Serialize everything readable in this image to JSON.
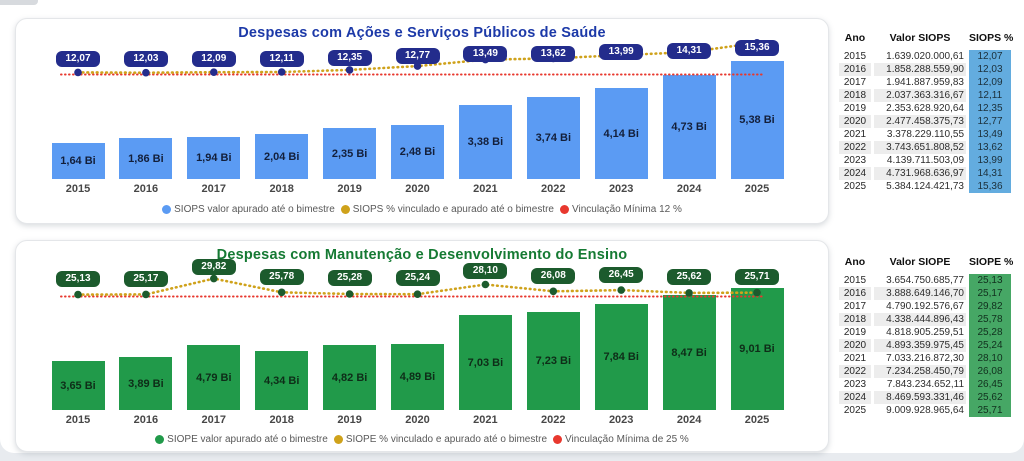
{
  "chart_data": [
    {
      "type": "bar",
      "title": "Despesas com Ações e Serviços Públicos de Saúde",
      "title_color": "#1C39A8",
      "categories": [
        "2015",
        "2016",
        "2017",
        "2018",
        "2019",
        "2020",
        "2021",
        "2022",
        "2023",
        "2024",
        "2025"
      ],
      "bar_series": {
        "name": "SIOPS valor apurado até o bimestre",
        "unit": "Bi",
        "color": "#5B9BF3",
        "values": [
          1.64,
          1.86,
          1.94,
          2.04,
          2.35,
          2.48,
          3.38,
          3.74,
          4.14,
          4.73,
          5.38
        ],
        "labels": [
          "1,64 Bi",
          "1,86 Bi",
          "1,94 Bi",
          "2,04 Bi",
          "2,35 Bi",
          "2,48 Bi",
          "3,38 Bi",
          "3,74 Bi",
          "4,14 Bi",
          "4,73 Bi",
          "5,38 Bi"
        ]
      },
      "pct_series": {
        "name": "SIOPS % vinculado e apurado até o bimestre",
        "color": "#CFA21B",
        "marker_color": "#232C8C",
        "values": [
          12.07,
          12.03,
          12.09,
          12.11,
          12.35,
          12.77,
          13.49,
          13.62,
          13.99,
          14.31,
          15.36
        ],
        "labels": [
          "12,07",
          "12,03",
          "12,09",
          "12,11",
          "12,35",
          "12,77",
          "13,49",
          "13,62",
          "13,99",
          "14,31",
          "15,36"
        ]
      },
      "reference_line": {
        "name": "Vinculação Mínima 12 %",
        "value": 12,
        "color": "#E8382E"
      },
      "ylim": [
        0,
        6
      ],
      "legend_position": "bottom",
      "grid": false
    },
    {
      "type": "bar",
      "title": "Despesas com Manutenção e Desenvolvimento do Ensino",
      "title_color": "#157A33",
      "categories": [
        "2015",
        "2016",
        "2017",
        "2018",
        "2019",
        "2020",
        "2021",
        "2022",
        "2023",
        "2024",
        "2025"
      ],
      "bar_series": {
        "name": "SIOPE valor apurado até o bimestre",
        "unit": "Bi",
        "color": "#219A4A",
        "values": [
          3.65,
          3.89,
          4.79,
          4.34,
          4.82,
          4.89,
          7.03,
          7.23,
          7.84,
          8.47,
          9.01
        ],
        "labels": [
          "3,65 Bi",
          "3,89 Bi",
          "4,79 Bi",
          "4,34 Bi",
          "4,82 Bi",
          "4,89 Bi",
          "7,03 Bi",
          "7,23 Bi",
          "7,84 Bi",
          "8,47 Bi",
          "9,01 Bi"
        ]
      },
      "pct_series": {
        "name": "SIOPE % vinculado e apurado até o bimestre",
        "color": "#CFA21B",
        "marker_color": "#1C5B2D",
        "values": [
          25.13,
          25.17,
          29.82,
          25.78,
          25.28,
          25.24,
          28.1,
          26.08,
          26.45,
          25.62,
          25.71
        ],
        "labels": [
          "25,13",
          "25,17",
          "29,82",
          "25,78",
          "25,28",
          "25,24",
          "28,10",
          "26,08",
          "26,45",
          "25,62",
          "25,71"
        ]
      },
      "reference_line": {
        "name": "Vinculação Mínima de 25 %",
        "value": 25,
        "color": "#E8382E"
      },
      "ylim": [
        0,
        10
      ],
      "legend_position": "bottom",
      "grid": false
    }
  ],
  "tables": [
    {
      "headers": [
        "Ano",
        "Valor SIOPS",
        "SIOPS %"
      ],
      "pct_bg": "#63ACDF",
      "pct_text": "#1b2f3a",
      "stripe_color": "#EDEDED",
      "rows": [
        [
          "2015",
          "1.639.020.000,61",
          "12,07"
        ],
        [
          "2016",
          "1.858.288.559,90",
          "12,03"
        ],
        [
          "2017",
          "1.941.887.959,83",
          "12,09"
        ],
        [
          "2018",
          "2.037.363.316,67",
          "12,11"
        ],
        [
          "2019",
          "2.353.628.920,64",
          "12,35"
        ],
        [
          "2020",
          "2.477.458.375,73",
          "12,77"
        ],
        [
          "2021",
          "3.378.229.110,55",
          "13,49"
        ],
        [
          "2022",
          "3.743.651.808,52",
          "13,62"
        ],
        [
          "2023",
          "4.139.711.503,09",
          "13,99"
        ],
        [
          "2024",
          "4.731.968.636,97",
          "14,31"
        ],
        [
          "2025",
          "5.384.124.421,73",
          "15,36"
        ]
      ]
    },
    {
      "headers": [
        "Ano",
        "Valor SIOPE",
        "SIOPE %"
      ],
      "pct_bg": "#46A765",
      "pct_text": "#11301e",
      "stripe_color": "#EDEDED",
      "rows": [
        [
          "2015",
          "3.654.750.685,77",
          "25,13"
        ],
        [
          "2016",
          "3.888.649.146,70",
          "25,17"
        ],
        [
          "2017",
          "4.790.192.576,67",
          "29,82"
        ],
        [
          "2018",
          "4.338.444.896,43",
          "25,78"
        ],
        [
          "2019",
          "4.818.905.259,51",
          "25,28"
        ],
        [
          "2020",
          "4.893.359.975,45",
          "25,24"
        ],
        [
          "2021",
          "7.033.216.872,30",
          "28,10"
        ],
        [
          "2022",
          "7.234.258.450,79",
          "26,08"
        ],
        [
          "2023",
          "7.843.234.652,11",
          "26,45"
        ],
        [
          "2024",
          "8.469.593.331,46",
          "25,62"
        ],
        [
          "2025",
          "9.009.928.965,64",
          "25,71"
        ]
      ]
    }
  ]
}
